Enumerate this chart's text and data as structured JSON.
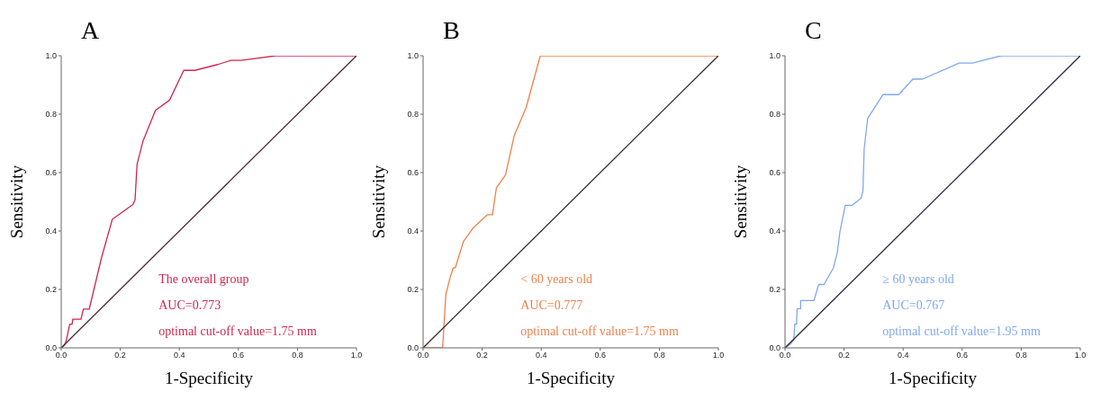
{
  "chart_data": [
    {
      "type": "line",
      "title": "A",
      "xlabel": "1-Specificity",
      "ylabel": "Sensitivity",
      "xlim": [
        0,
        1
      ],
      "ylim": [
        0,
        1
      ],
      "xticks": [
        {
          "value": 0,
          "label": "0.0"
        },
        {
          "value": 0.2,
          "label": "0.2"
        },
        {
          "value": 0.4,
          "label": "0.4"
        },
        {
          "value": 0.6,
          "label": "0.6"
        },
        {
          "value": 0.8,
          "label": "0.8"
        },
        {
          "value": 1,
          "label": "1.0"
        }
      ],
      "yticks": [
        {
          "value": 0,
          "label": "0.0"
        },
        {
          "value": 0.2,
          "label": "0.2"
        },
        {
          "value": 0.4,
          "label": "0.4"
        },
        {
          "value": 0.6,
          "label": "0.6"
        },
        {
          "value": 0.8,
          "label": "0.8"
        },
        {
          "value": 1,
          "label": "1.0"
        }
      ],
      "grid": false,
      "marker": "none",
      "line_style": "solid",
      "annotations": [
        "The overall group",
        "AUC=0.773",
        "optimal cut-off value=1.75 mm"
      ],
      "series": [
        {
          "color": "#d0264f",
          "x": [
            0,
            0.012,
            0.017,
            0.029,
            0.037,
            0.039,
            0.067,
            0.075,
            0.095,
            0.136,
            0.173,
            0.243,
            0.25,
            0.257,
            0.277,
            0.319,
            0.367,
            0.415,
            0.453,
            0.53,
            0.575,
            0.61,
            0.727,
            1
          ],
          "values": [
            0,
            0.01,
            0.025,
            0.081,
            0.081,
            0.098,
            0.098,
            0.133,
            0.133,
            0.307,
            0.44,
            0.491,
            0.506,
            0.629,
            0.708,
            0.813,
            0.848,
            0.95,
            0.95,
            0.97,
            0.984,
            0.984,
            1,
            1
          ]
        },
        {
          "color": "#4a2a30",
          "x": [
            0,
            1
          ],
          "values": [
            0,
            1
          ]
        }
      ]
    },
    {
      "type": "line",
      "title": "B",
      "xlabel": "1-Specificity",
      "ylabel": "Sensitivity",
      "xlim": [
        0,
        1
      ],
      "ylim": [
        0,
        1
      ],
      "xticks": [
        {
          "value": 0,
          "label": "0.0"
        },
        {
          "value": 0.2,
          "label": "0.2"
        },
        {
          "value": 0.4,
          "label": "0.4"
        },
        {
          "value": 0.6,
          "label": "0.6"
        },
        {
          "value": 0.8,
          "label": "0.8"
        },
        {
          "value": 1,
          "label": "1.0"
        }
      ],
      "yticks": [
        {
          "value": 0,
          "label": "0.0"
        },
        {
          "value": 0.2,
          "label": "0.2"
        },
        {
          "value": 0.4,
          "label": "0.4"
        },
        {
          "value": 0.6,
          "label": "0.6"
        },
        {
          "value": 0.8,
          "label": "0.8"
        },
        {
          "value": 1,
          "label": "1.0"
        }
      ],
      "grid": false,
      "marker": "none",
      "line_style": "solid",
      "annotations": [
        "< 60 years old",
        "AUC=0.777",
        "optimal cut-off value=1.75 mm"
      ],
      "series": [
        {
          "color": "#f07f4a",
          "x": [
            0,
            0.066,
            0.077,
            0.091,
            0.102,
            0.109,
            0.137,
            0.17,
            0.218,
            0.235,
            0.248,
            0.279,
            0.309,
            0.349,
            0.397,
            1
          ],
          "values": [
            0,
            0,
            0.183,
            0.239,
            0.274,
            0.274,
            0.365,
            0.411,
            0.456,
            0.456,
            0.547,
            0.592,
            0.728,
            0.823,
            1,
            1
          ]
        },
        {
          "color": "#3a2a2a",
          "x": [
            0,
            1
          ],
          "values": [
            0,
            1
          ]
        }
      ]
    },
    {
      "type": "line",
      "title": "C",
      "xlabel": "1-Specificity",
      "ylabel": "Sensitivity",
      "xlim": [
        0,
        1
      ],
      "ylim": [
        0,
        1
      ],
      "xticks": [
        {
          "value": 0,
          "label": "0.0"
        },
        {
          "value": 0.2,
          "label": "0.2"
        },
        {
          "value": 0.4,
          "label": "0.4"
        },
        {
          "value": 0.6,
          "label": "0.6"
        },
        {
          "value": 0.8,
          "label": "0.8"
        },
        {
          "value": 1,
          "label": "1.0"
        }
      ],
      "yticks": [
        {
          "value": 0,
          "label": "0.0"
        },
        {
          "value": 0.2,
          "label": "0.2"
        },
        {
          "value": 0.4,
          "label": "0.4"
        },
        {
          "value": 0.6,
          "label": "0.6"
        },
        {
          "value": 0.8,
          "label": "0.8"
        },
        {
          "value": 1,
          "label": "1.0"
        }
      ],
      "grid": false,
      "marker": "none",
      "line_style": "solid",
      "annotations": [
        "≥ 60 years old",
        "AUC=0.767",
        "optimal cut-off value=1.95 mm"
      ],
      "series": [
        {
          "color": "#7fa8f0",
          "x": [
            0,
            0.017,
            0.03,
            0.033,
            0.039,
            0.041,
            0.053,
            0.053,
            0.098,
            0.114,
            0.132,
            0.164,
            0.177,
            0.186,
            0.204,
            0.227,
            0.258,
            0.264,
            0.268,
            0.28,
            0.332,
            0.385,
            0.433,
            0.466,
            0.59,
            0.636,
            0.732,
            1
          ],
          "values": [
            0,
            0.012,
            0.027,
            0.081,
            0.081,
            0.134,
            0.134,
            0.162,
            0.162,
            0.217,
            0.217,
            0.274,
            0.326,
            0.397,
            0.488,
            0.488,
            0.513,
            0.538,
            0.68,
            0.786,
            0.867,
            0.867,
            0.92,
            0.92,
            0.975,
            0.975,
            1,
            1
          ]
        },
        {
          "color": "#2a2a3a",
          "x": [
            0,
            1
          ],
          "values": [
            0,
            1
          ]
        }
      ]
    }
  ]
}
